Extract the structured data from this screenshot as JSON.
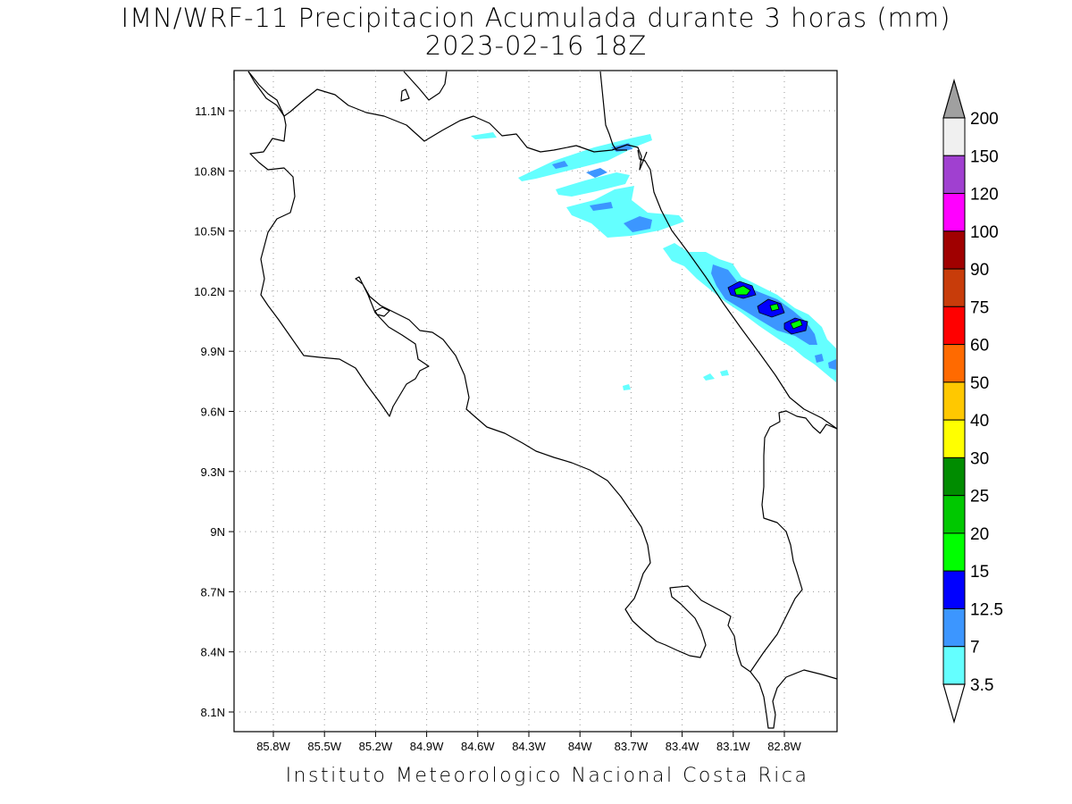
{
  "title": {
    "line1": "IMN/WRF-11 Precipitacion Acumulada durante 3 horas (mm)",
    "line2": "2023-02-16 18Z"
  },
  "axes": {
    "lat_labels": [
      "11.1N",
      "10.8N",
      "10.5N",
      "10.2N",
      "9.9N",
      "9.6N",
      "9.3N",
      "9N",
      "8.7N",
      "8.4N",
      "8.1N"
    ],
    "lon_labels": [
      "85.8W",
      "85.5W",
      "85.2W",
      "84.9W",
      "84.6W",
      "84.3W",
      "84W",
      "83.7W",
      "83.4W",
      "83.1W",
      "82.8W"
    ]
  },
  "colorbar": {
    "labels": [
      "200",
      "150",
      "120",
      "100",
      "90",
      "75",
      "60",
      "50",
      "40",
      "30",
      "25",
      "20",
      "15",
      "12.5",
      "7",
      "3.5"
    ],
    "colors": [
      "#f0f0f0",
      "#a040d0",
      "#ff00ff",
      "#a00000",
      "#c83c0a",
      "#ff0000",
      "#ff6a00",
      "#ffc800",
      "#ffff00",
      "#008c00",
      "#00c800",
      "#00ff00",
      "#0000ff",
      "#3c96ff",
      "#64ffff"
    ],
    "over_color": "#a0a0a0",
    "under_color": "#ffffff"
  },
  "footer": "Instituto Meteorologico Nacional Costa Rica"
}
